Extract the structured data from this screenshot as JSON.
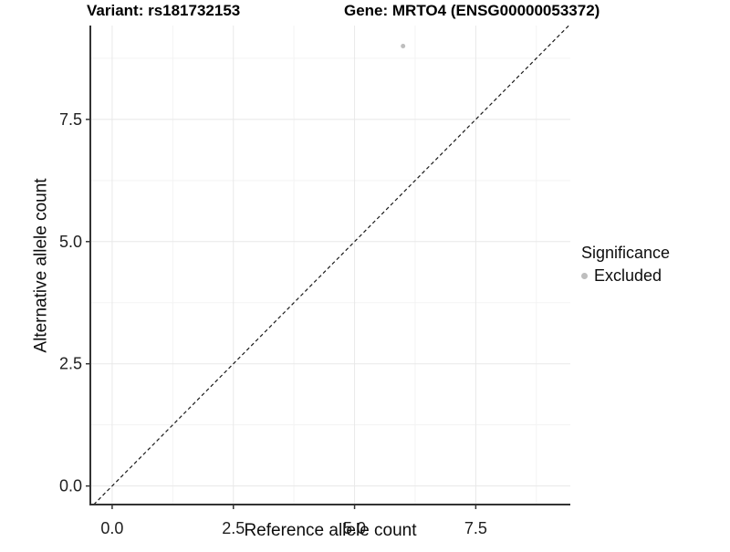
{
  "chart_data": {
    "type": "scatter",
    "title_variant": "Variant: rs181732153",
    "title_gene": "Gene: MRTO4 (ENSG00000053372)",
    "xlabel": "Reference allele count",
    "ylabel": "Alternative allele count",
    "xlim": [
      -0.45,
      9.45
    ],
    "ylim": [
      -0.38,
      9.42
    ],
    "x_ticks": [
      0,
      2.5,
      5,
      7.5
    ],
    "y_ticks": [
      0,
      2.5,
      5,
      7.5
    ],
    "x_minor_ticks": [
      1.25,
      3.75,
      6.25,
      8.75
    ],
    "y_minor_ticks": [
      1.25,
      3.75,
      6.25,
      8.75
    ],
    "tick_label_decimals": 1,
    "grid": true,
    "series": [
      {
        "name": "Excluded",
        "color": "#bebebe",
        "point_radius": 2.5,
        "points": [
          {
            "x": 6,
            "y": 9
          }
        ]
      }
    ],
    "reference_line": {
      "slope": 1,
      "intercept": 0,
      "style": "dashed",
      "color": "#1a1a1a"
    },
    "legend": {
      "position": "right",
      "title": "Significance",
      "items": [
        {
          "label": "Excluded",
          "color": "#bebebe"
        }
      ]
    },
    "colors": {
      "background": "#ffffff",
      "axis_line": "#333333",
      "tick_text": "#1f1f1f",
      "major_grid": "#e8e8e8",
      "minor_grid": "#f3f3f3"
    }
  }
}
